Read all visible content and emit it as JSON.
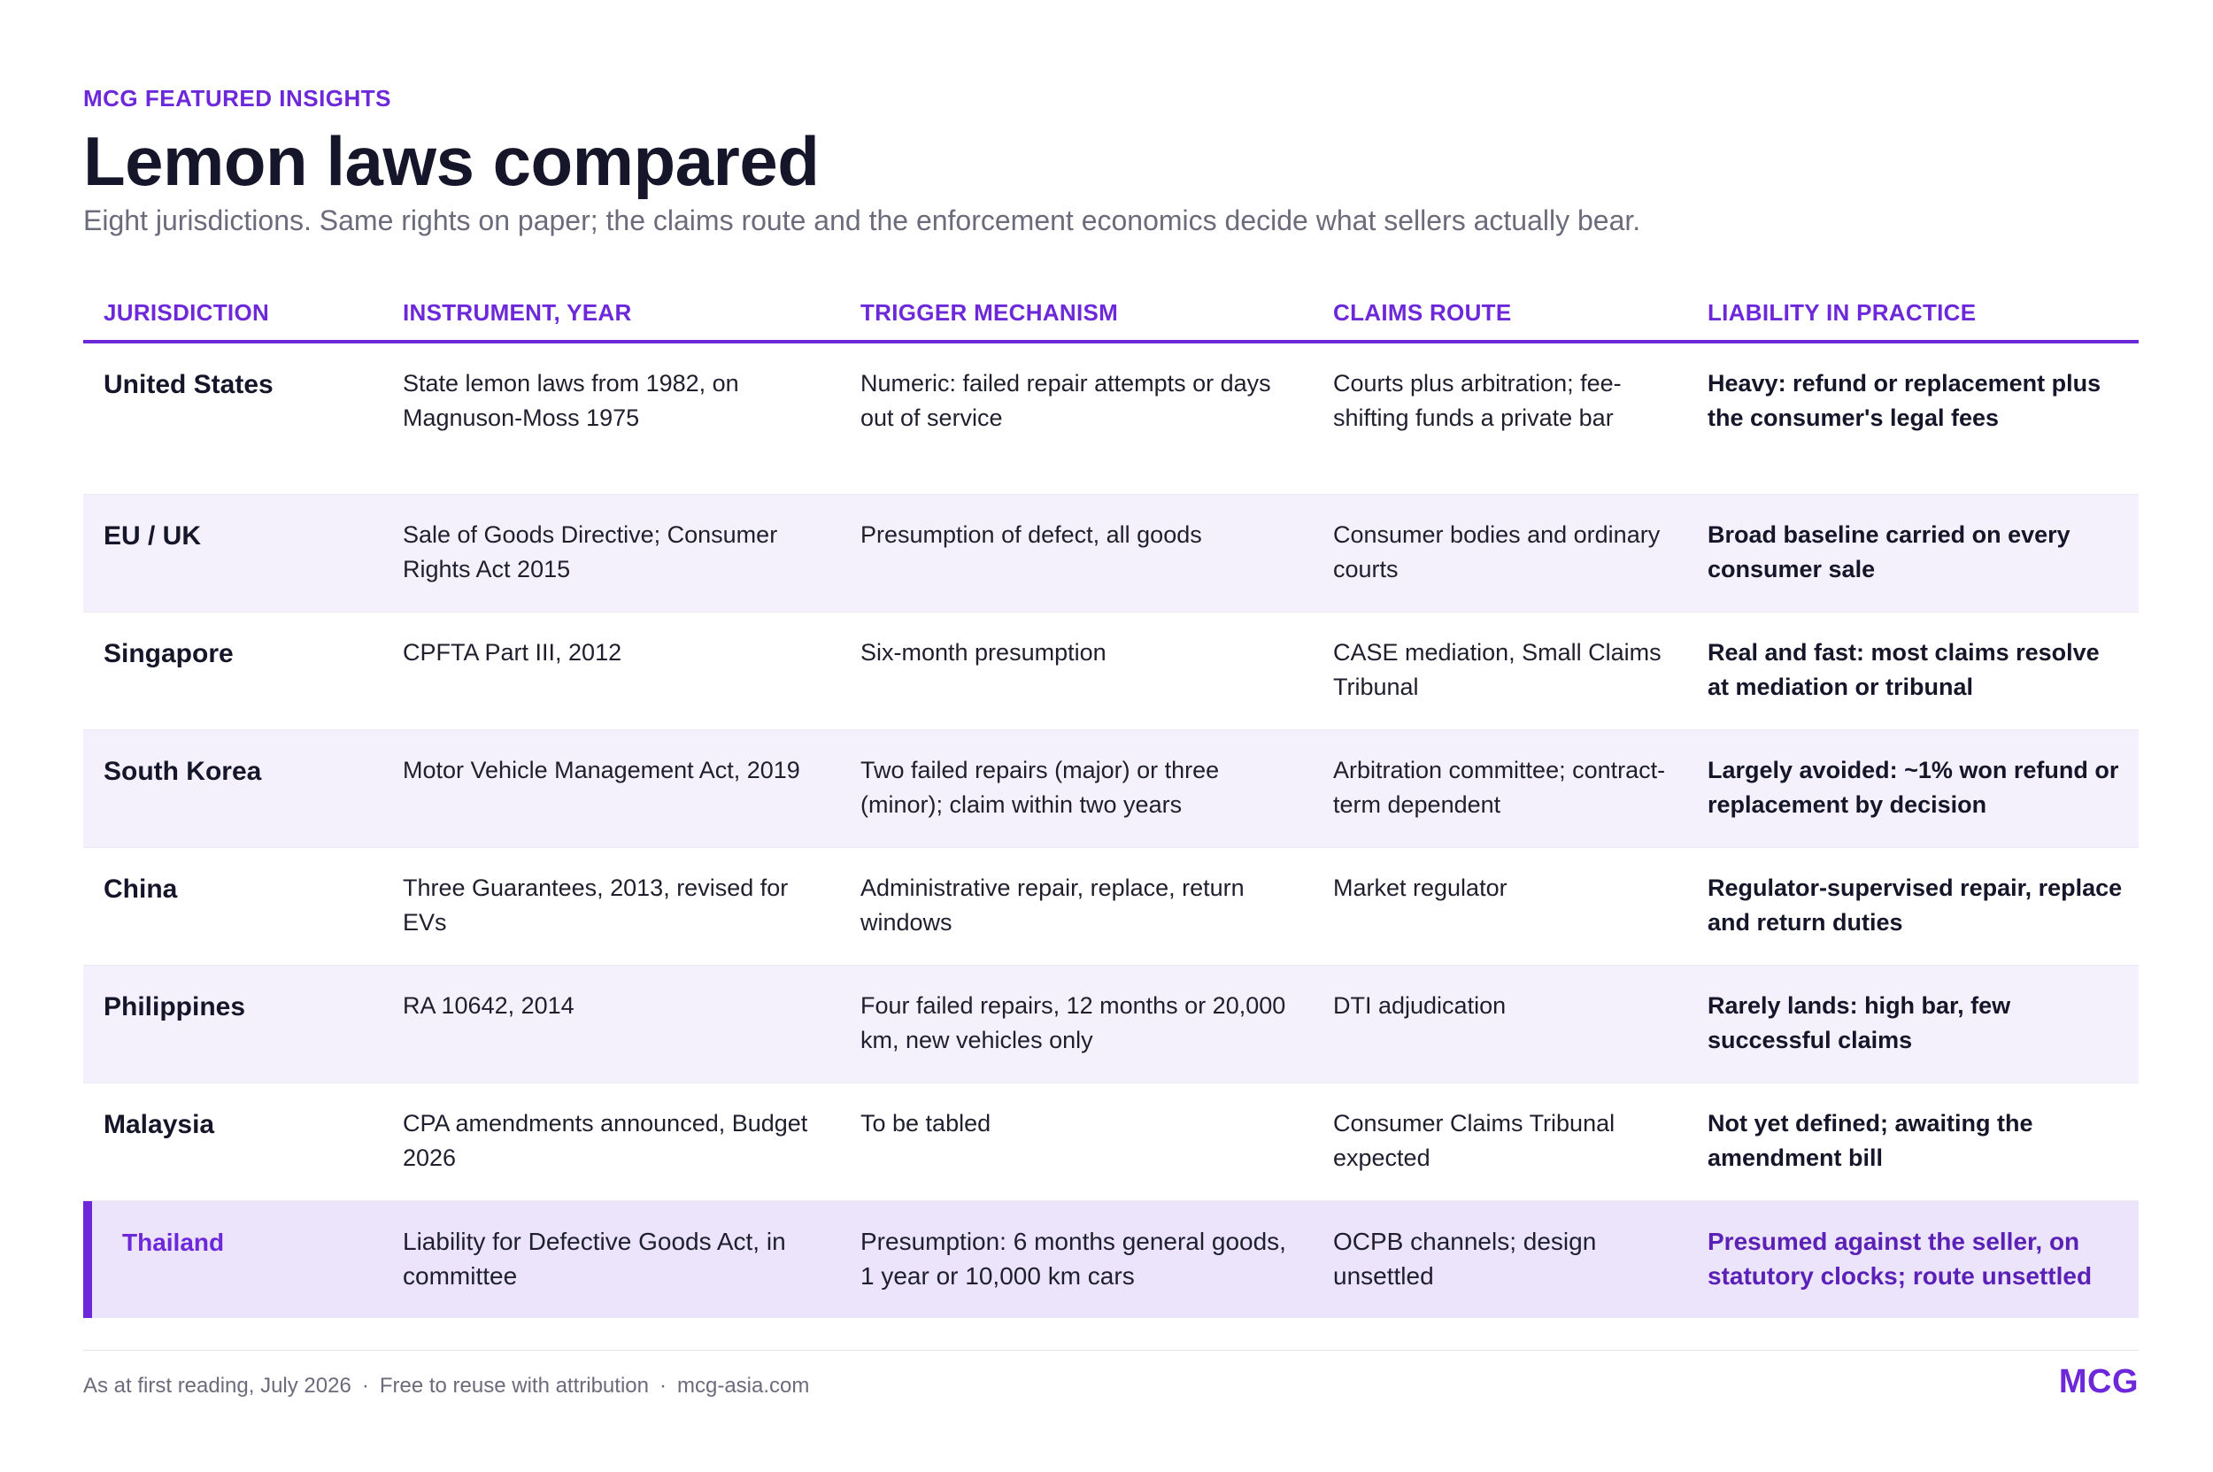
{
  "header": {
    "eyebrow": "MCG FEATURED INSIGHTS",
    "title": "Lemon laws compared",
    "subtitle": "Eight jurisdictions. Same rights on paper; the claims route and the enforcement economics decide what sellers actually bear."
  },
  "table": {
    "columns": [
      "JURISDICTION",
      "INSTRUMENT, YEAR",
      "TRIGGER MECHANISM",
      "CLAIMS ROUTE",
      "LIABILITY IN PRACTICE"
    ],
    "rows": [
      {
        "jurisdiction": "United States",
        "instrument": "State lemon laws from 1982, on Magnuson-Moss 1975",
        "trigger": "Numeric: failed repair attempts or days out of service",
        "route": "Courts plus arbitration; fee-shifting funds a private bar",
        "liability": "Heavy: refund or replacement plus the consumer's legal fees"
      },
      {
        "jurisdiction": "EU / UK",
        "instrument": "Sale of Goods Directive; Consumer Rights Act 2015",
        "trigger": "Presumption of defect, all goods",
        "route": "Consumer bodies and ordinary courts",
        "liability": "Broad baseline carried on every consumer sale"
      },
      {
        "jurisdiction": "Singapore",
        "instrument": "CPFTA Part III, 2012",
        "trigger": "Six-month presumption",
        "route": "CASE mediation, Small Claims Tribunal",
        "liability": "Real and fast: most claims resolve at mediation or tribunal"
      },
      {
        "jurisdiction": "South Korea",
        "instrument": "Motor Vehicle Management Act, 2019",
        "trigger": "Two failed repairs (major) or three (minor); claim within two years",
        "route": "Arbitration committee; contract-term dependent",
        "liability": "Largely avoided: ~1% won refund or replacement by decision"
      },
      {
        "jurisdiction": "China",
        "instrument": "Three Guarantees, 2013, revised for EVs",
        "trigger": "Administrative repair, replace, return windows",
        "route": "Market regulator",
        "liability": "Regulator-supervised repair, replace and return duties"
      },
      {
        "jurisdiction": "Philippines",
        "instrument": "RA 10642, 2014",
        "trigger": "Four failed repairs, 12 months or 20,000 km, new vehicles only",
        "route": "DTI adjudication",
        "liability": "Rarely lands: high bar, few successful claims"
      },
      {
        "jurisdiction": "Malaysia",
        "instrument": "CPA amendments announced, Budget 2026",
        "trigger": "To be tabled",
        "route": "Consumer Claims Tribunal expected",
        "liability": "Not yet defined; awaiting the amendment bill"
      },
      {
        "jurisdiction": "Thailand",
        "instrument": "Liability for Defective Goods Act, in committee",
        "trigger": "Presumption: 6 months general goods, 1 year or 10,000 km cars",
        "route": "OCPB channels; design unsettled",
        "liability": "Presumed against the seller, on statutory clocks; route unsettled"
      }
    ]
  },
  "footer": {
    "note": "As at first reading, July 2026",
    "reuse": "Free to reuse with attribution",
    "site": "mcg-asia.com",
    "separator": "·",
    "brand": "MCG"
  },
  "colors": {
    "accent": "#6d28d9",
    "row_alt": "#f4f1fd",
    "row_highlight": "#ebe4fb",
    "text_dark": "#16162a",
    "text_muted": "#6b6b7b"
  }
}
